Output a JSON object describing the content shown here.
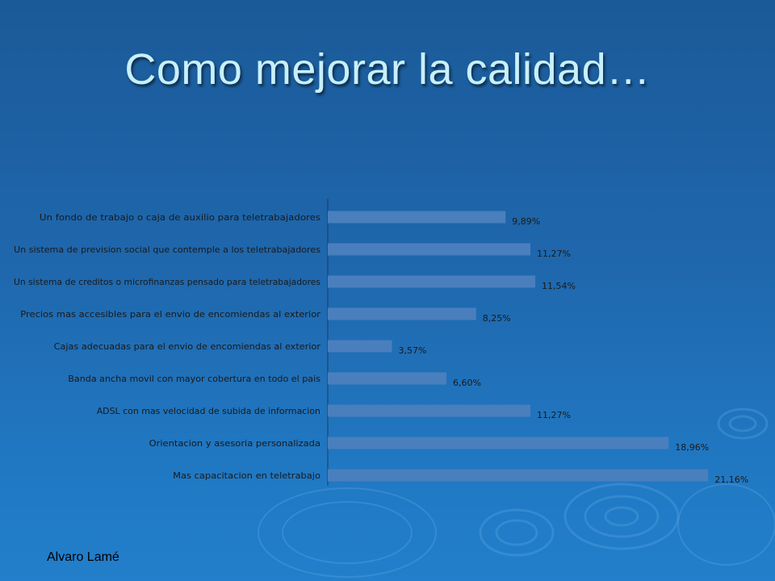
{
  "slide": {
    "title": "Como mejorar la calidad…",
    "footer": "Alvaro Lamé"
  },
  "colors": {
    "bar": "#4a7fbd",
    "title": "#c8f0fb",
    "axis": "#1e3a5a"
  },
  "chart_data": {
    "type": "bar",
    "orientation": "horizontal",
    "title": "",
    "xlabel": "",
    "ylabel": "",
    "xlim": [
      0,
      22
    ],
    "grid": false,
    "legend": "none",
    "categories": [
      "Un fondo de trabajo o caja de auxilio para teletrabajadores",
      "Un sistema de prevision social que contemple a los teletrabajadores",
      "Un sistema de creditos o microfinanzas pensado para teletrabajadores",
      "Precios mas accesibles para el envio de encomiendas al exterior",
      "Cajas adecuadas para el envio de encomiendas al exterior",
      "Banda ancha movil con mayor cobertura en todo el pais",
      "ADSL con mas velocidad de subida de informacion",
      "Orientacion y asesoria personalizada",
      "Mas capacitacion en teletrabajo"
    ],
    "values": [
      9.89,
      11.27,
      11.54,
      8.25,
      3.57,
      6.6,
      11.27,
      18.96,
      21.16
    ],
    "value_labels": [
      "9,89%",
      "11,27%",
      "11,54%",
      "8,25%",
      "3,57%",
      "6,60%",
      "11,27%",
      "18,96%",
      "21,16%"
    ]
  }
}
